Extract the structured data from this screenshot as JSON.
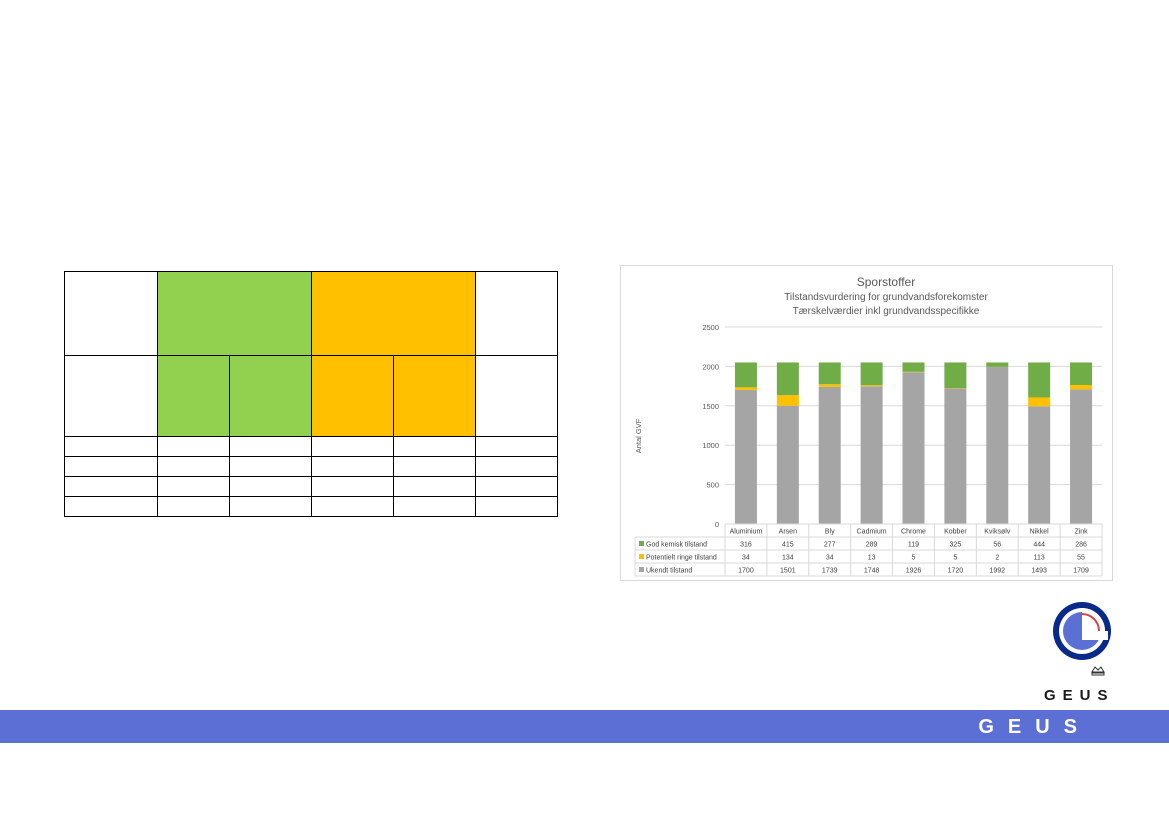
{
  "colors": {
    "green": "#70ad47",
    "yellow": "#ffc000",
    "gray": "#a5a5a5",
    "table_green": "#92d050",
    "table_orange": "#ffc000",
    "footer": "#5b6fd4"
  },
  "chart_data": {
    "type": "bar",
    "stacked": true,
    "title": "Sporstoffer",
    "subtitle1": "Tilstandsvurdering for grundvandsforekomster",
    "subtitle2": "Tærskelværdier inkl grundvandsspecifikke",
    "ylabel": "Antal GVF",
    "ylim": [
      0,
      2500
    ],
    "yticks": [
      "0",
      "500",
      "1000",
      "1500",
      "2000",
      "2500"
    ],
    "grid": true,
    "legend": "data-table",
    "categories": [
      "Aluminium",
      "Arsen",
      "Bly",
      "Cadmium",
      "Chrome",
      "Kobber",
      "Kviksølv",
      "Nikkel",
      "Zink"
    ],
    "series": [
      {
        "name": "God kemisk tilstand",
        "color": "#70ad47",
        "values": [
          316,
          415,
          277,
          289,
          119,
          325,
          56,
          444,
          286
        ]
      },
      {
        "name": "Potentielt ringe tilstand",
        "color": "#ffc000",
        "values": [
          34,
          134,
          34,
          13,
          5,
          5,
          2,
          113,
          55
        ]
      },
      {
        "name": "Ukendt tilstand",
        "color": "#a5a5a5",
        "values": [
          1700,
          1501,
          1739,
          1748,
          1926,
          1720,
          1992,
          1493,
          1709
        ]
      }
    ]
  },
  "logo": {
    "text": "GEUS"
  },
  "footer": {
    "text": "GEUS"
  }
}
